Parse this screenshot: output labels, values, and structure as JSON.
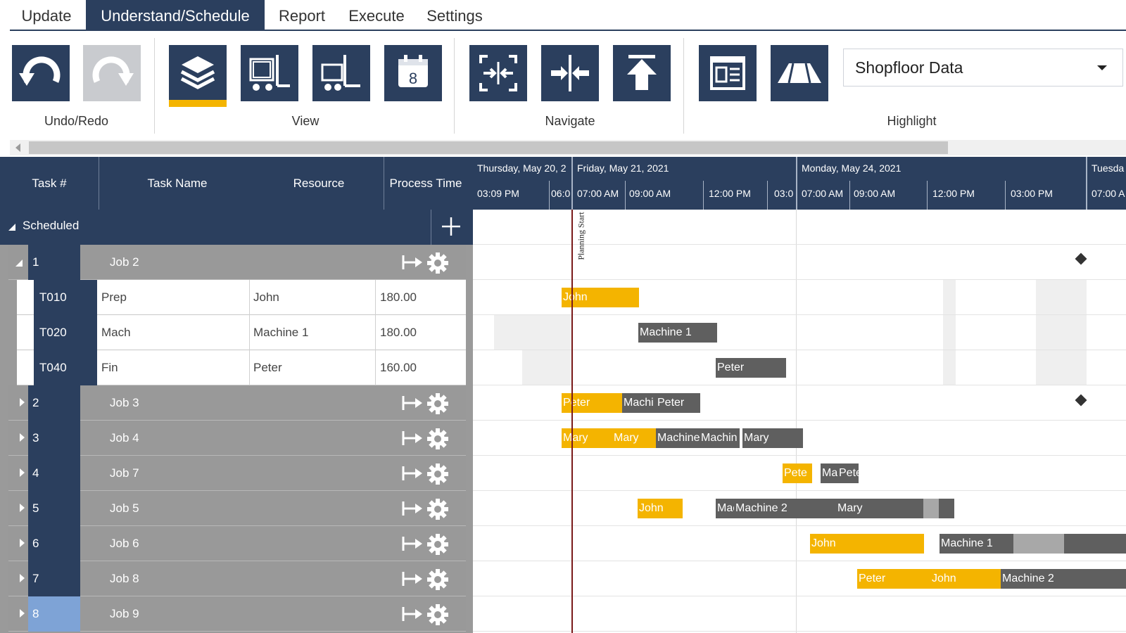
{
  "menu": {
    "tabs": [
      "Update",
      "Understand/Schedule",
      "Report",
      "Execute",
      "Settings"
    ],
    "active": "Understand/Schedule"
  },
  "ribbon": {
    "groups": {
      "undo_redo": "Undo/Redo",
      "view": "View",
      "navigate": "Navigate",
      "highlight": "Highlight"
    },
    "icons": [
      "undo-icon",
      "redo-icon",
      "layers-icon",
      "forklift-pallet-icon",
      "forklift-icon",
      "calendar-icon",
      "fit-expand-icon",
      "compress-icon",
      "to-top-icon",
      "report-icon",
      "perspective-icon"
    ],
    "highlight_select": "Shopfloor Data",
    "accent_color": "#f4b400",
    "primary_color": "#2b3f5e"
  },
  "grid": {
    "columns": [
      "Task #",
      "Task Name",
      "Resource",
      "Process Time"
    ],
    "group_label": "Scheduled",
    "expanded_job": {
      "num": "1",
      "name": "Job 2",
      "tasks": [
        {
          "id": "T010",
          "name": "Prep",
          "resource": "John",
          "time": "180.00"
        },
        {
          "id": "T020",
          "name": "Mach",
          "resource": "Machine 1",
          "time": "180.00"
        },
        {
          "id": "T040",
          "name": "Fin",
          "resource": "Peter",
          "time": "160.00"
        }
      ]
    },
    "jobs": [
      {
        "num": "2",
        "name": "Job 3"
      },
      {
        "num": "3",
        "name": "Job 4"
      },
      {
        "num": "4",
        "name": "Job 7"
      },
      {
        "num": "5",
        "name": "Job 5"
      },
      {
        "num": "6",
        "name": "Job 6"
      },
      {
        "num": "7",
        "name": "Job 8"
      },
      {
        "num": "8",
        "name": "Job 9"
      }
    ]
  },
  "gantt": {
    "days": [
      "Thursday, May 20, 2",
      "Friday, May 21, 2021",
      "Monday, May 24, 2021",
      "Tuesda"
    ],
    "hours": [
      "03:09 PM",
      "06:0",
      "07:00 AM",
      "09:00 AM",
      "12:00 PM",
      "03:0",
      "07:00 AM",
      "09:00 AM",
      "12:00 PM",
      "03:00 PM",
      "07:00 A"
    ],
    "planning_label": "Planning Start",
    "rows": [
      {
        "bars": []
      },
      {
        "bars": [
          {
            "label": "John",
            "kind": "y"
          }
        ]
      },
      {
        "bars": [
          {
            "label": "Machine 1",
            "kind": "g"
          }
        ]
      },
      {
        "bars": [
          {
            "label": "Peter",
            "kind": "g"
          }
        ]
      },
      {
        "bars": [
          {
            "label": "Peter",
            "kind": "y"
          },
          {
            "label": "Machi",
            "kind": "g"
          },
          {
            "label": "Peter",
            "kind": "g"
          }
        ]
      },
      {
        "bars": [
          {
            "label": "Mary",
            "kind": "y"
          },
          {
            "label": "Mary",
            "kind": "y"
          },
          {
            "label": "Machine",
            "kind": "g"
          },
          {
            "label": "Machin",
            "kind": "g"
          },
          {
            "label": "Mary",
            "kind": "g"
          }
        ]
      },
      {
        "bars": [
          {
            "label": "Pete",
            "kind": "y"
          },
          {
            "label": "Ma",
            "kind": "g"
          },
          {
            "label": "Pete",
            "kind": "g"
          }
        ]
      },
      {
        "bars": [
          {
            "label": "John",
            "kind": "y"
          },
          {
            "label": "Macl",
            "kind": "g"
          },
          {
            "label": "Machine 2",
            "kind": "g"
          },
          {
            "label": "Mary",
            "kind": "g"
          }
        ]
      },
      {
        "bars": [
          {
            "label": "John",
            "kind": "y"
          },
          {
            "label": "Machine 1",
            "kind": "g"
          }
        ]
      },
      {
        "bars": [
          {
            "label": "Peter",
            "kind": "y"
          },
          {
            "label": "John",
            "kind": "y"
          },
          {
            "label": "Machine 2",
            "kind": "g"
          }
        ]
      }
    ]
  }
}
